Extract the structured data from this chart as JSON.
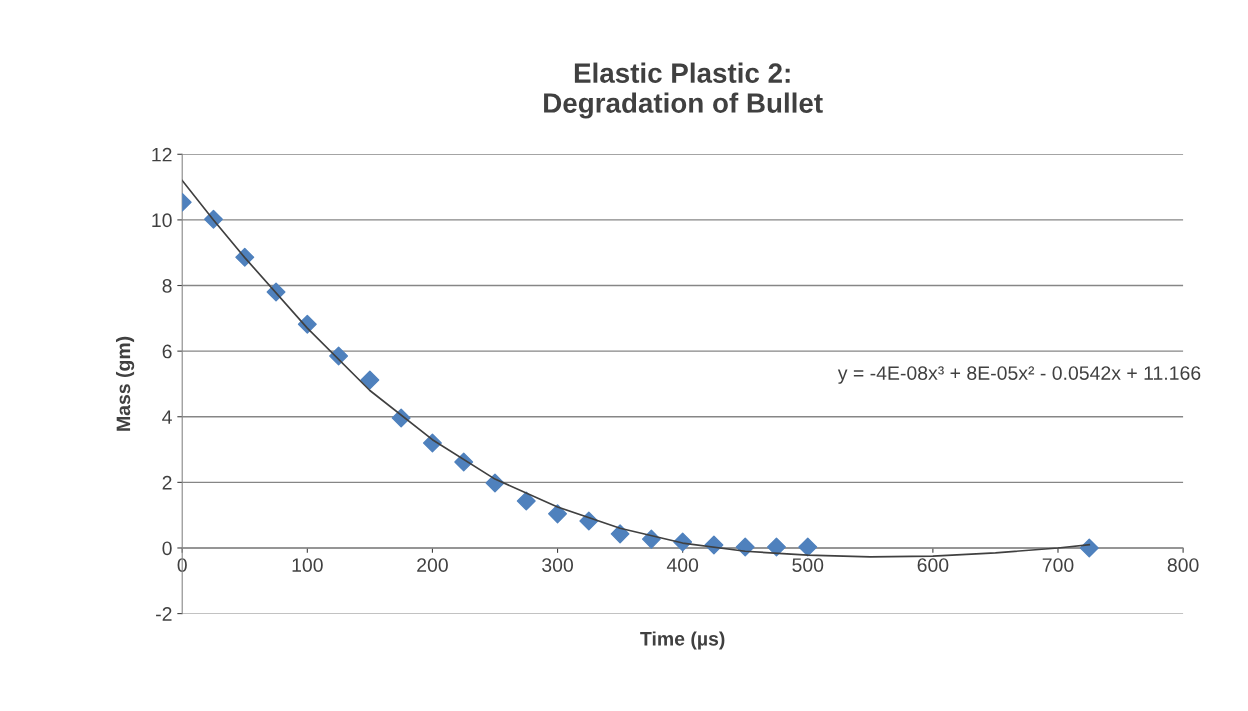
{
  "chart_data": {
    "type": "scatter",
    "title": "Elastic Plastic 2:\nDegradation of Bullet",
    "xlabel": "Time (µs)",
    "ylabel": "Mass (gm)",
    "x": [
      0,
      25,
      50,
      75,
      100,
      125,
      150,
      175,
      200,
      225,
      250,
      275,
      300,
      325,
      350,
      375,
      400,
      425,
      450,
      475,
      500,
      725
    ],
    "series": [
      {
        "color": "#4f81bd",
        "marker": "diamond",
        "values": [
          10.54,
          10.02,
          8.86,
          7.8,
          6.82,
          5.85,
          5.12,
          3.96,
          3.2,
          2.62,
          1.98,
          1.43,
          1.04,
          0.82,
          0.43,
          0.27,
          0.18,
          0.09,
          0.03,
          0.03,
          0.03,
          0
        ]
      },
      {
        "type": "line",
        "color": "#404040",
        "marker": "none",
        "line_style": "solid",
        "x": [
          0,
          25,
          50,
          100,
          150,
          200,
          250,
          300,
          350,
          400,
          450,
          500,
          550,
          600,
          650,
          700,
          725
        ],
        "values": [
          11.2,
          10.0,
          8.85,
          6.7,
          4.8,
          3.3,
          2.1,
          1.25,
          0.6,
          0.15,
          -0.1,
          -0.22,
          -0.27,
          -0.25,
          -0.15,
          0.0,
          0.1
        ]
      }
    ],
    "annotations": [
      "y = -4E-08x³ + 8E-05x² - 0.0542x + 11.166"
    ],
    "xlim": [
      0,
      800
    ],
    "xticks": [
      0,
      100,
      200,
      300,
      400,
      500,
      600,
      700,
      800
    ],
    "ylim": [
      -2,
      12
    ],
    "yticks": [
      -2,
      0,
      2,
      4,
      6,
      8,
      10,
      12
    ],
    "grid": "y",
    "legend": false
  }
}
